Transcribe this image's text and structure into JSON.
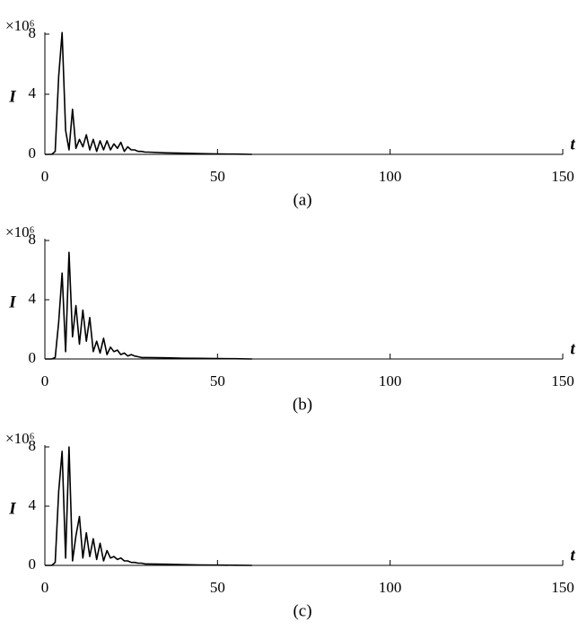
{
  "chart_data": [
    {
      "type": "line",
      "caption": "(a)",
      "xlabel": "t",
      "ylabel": "I",
      "y_scale_label": "×10⁶",
      "color": "#000000",
      "x": [
        0,
        1,
        2,
        3,
        4,
        5,
        6,
        7,
        8,
        9,
        10,
        11,
        12,
        13,
        14,
        15,
        16,
        17,
        18,
        19,
        20,
        21,
        22,
        23,
        24,
        25,
        26,
        27,
        28,
        29,
        30,
        35,
        40,
        45,
        50,
        55,
        60
      ],
      "values": [
        0,
        0,
        0,
        0.2,
        5.2,
        8.1,
        1.6,
        0.3,
        3.0,
        0.4,
        1.0,
        0.5,
        1.3,
        0.3,
        1.0,
        0.2,
        0.9,
        0.3,
        0.9,
        0.3,
        0.7,
        0.4,
        0.8,
        0.2,
        0.5,
        0.3,
        0.3,
        0.2,
        0.2,
        0.15,
        0.15,
        0.1,
        0.08,
        0.05,
        0.03,
        0.02,
        0
      ],
      "xlim": [
        0,
        150
      ],
      "xticks": [
        0,
        50,
        100,
        150
      ],
      "ylim": [
        0,
        8
      ],
      "yticks": [
        0,
        4,
        8
      ]
    },
    {
      "type": "line",
      "caption": "(b)",
      "xlabel": "t",
      "ylabel": "I",
      "y_scale_label": "×10⁶",
      "color": "#000000",
      "x": [
        0,
        1,
        2,
        3,
        4,
        5,
        6,
        7,
        8,
        9,
        10,
        11,
        12,
        13,
        14,
        15,
        16,
        17,
        18,
        19,
        20,
        21,
        22,
        23,
        24,
        25,
        26,
        27,
        28,
        29,
        30,
        35,
        40,
        45,
        50,
        55,
        60
      ],
      "values": [
        0,
        0,
        0,
        0.1,
        2.5,
        5.8,
        0.5,
        7.2,
        1.5,
        3.6,
        1.0,
        3.3,
        1.2,
        2.8,
        0.5,
        1.2,
        0.4,
        1.4,
        0.3,
        0.8,
        0.5,
        0.6,
        0.3,
        0.4,
        0.2,
        0.3,
        0.2,
        0.15,
        0.1,
        0.1,
        0.1,
        0.08,
        0.05,
        0.04,
        0.03,
        0.02,
        0
      ],
      "xlim": [
        0,
        150
      ],
      "xticks": [
        0,
        50,
        100,
        150
      ],
      "ylim": [
        0,
        8
      ],
      "yticks": [
        0,
        4,
        8
      ]
    },
    {
      "type": "line",
      "caption": "(c)",
      "xlabel": "t",
      "ylabel": "I",
      "y_scale_label": "×10⁶",
      "color": "#000000",
      "x": [
        0,
        1,
        2,
        3,
        4,
        5,
        6,
        7,
        8,
        9,
        10,
        11,
        12,
        13,
        14,
        15,
        16,
        17,
        18,
        19,
        20,
        21,
        22,
        23,
        24,
        25,
        26,
        27,
        28,
        29,
        30,
        35,
        40,
        45,
        50,
        55,
        60
      ],
      "values": [
        0,
        0,
        0,
        0.2,
        5.0,
        7.7,
        0.5,
        8.0,
        0.3,
        2.0,
        3.3,
        0.5,
        2.2,
        0.6,
        1.8,
        0.4,
        1.5,
        0.3,
        1.0,
        0.5,
        0.6,
        0.4,
        0.5,
        0.3,
        0.3,
        0.2,
        0.2,
        0.15,
        0.15,
        0.1,
        0.1,
        0.08,
        0.05,
        0.03,
        0.02,
        0.01,
        0
      ],
      "xlim": [
        0,
        150
      ],
      "xticks": [
        0,
        50,
        100,
        150
      ],
      "ylim": [
        0,
        8
      ],
      "yticks": [
        0,
        4,
        8
      ]
    }
  ]
}
